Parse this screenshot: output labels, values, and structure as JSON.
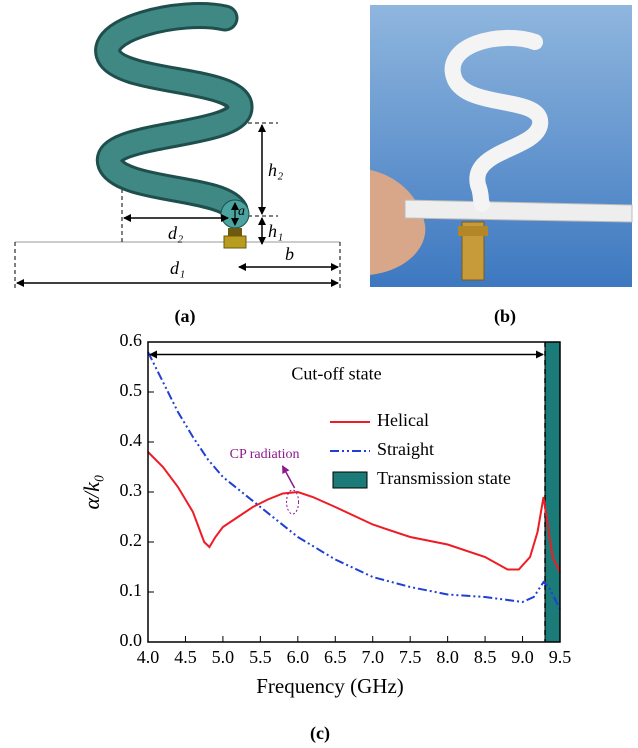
{
  "panels": [
    {
      "label": "(a)",
      "dimensions": [
        "h₂",
        "h₁",
        "a",
        "d₂",
        "d₁",
        "b"
      ]
    },
    {
      "label": "(b)"
    }
  ],
  "chart_data": {
    "type": "line",
    "panel_label": "(c)",
    "xlabel": "Frequency (GHz)",
    "ylabel": "α/k₀",
    "xlim": [
      4,
      9.5
    ],
    "xticks": [
      {
        "value": 4,
        "label": "4.0"
      },
      4.5,
      {
        "value": 5,
        "label": "5.0"
      },
      5.5,
      {
        "value": 6,
        "label": "6.0"
      },
      6.5,
      {
        "value": 7,
        "label": "7.0"
      },
      7.5,
      {
        "value": 8,
        "label": "8.0"
      },
      8.5,
      {
        "value": 9,
        "label": "9.0"
      },
      9.5
    ],
    "ylim": [
      0,
      0.6
    ],
    "yticks": [
      {
        "value": 0,
        "label": "0.0"
      },
      0.1,
      0.2,
      0.3,
      0.4,
      0.5,
      0.6
    ],
    "grid": false,
    "legend": "upper right",
    "annotations": [
      {
        "text": "Cut-off state",
        "x": [
          4,
          9.3
        ],
        "y": 0.575
      },
      {
        "text": "CP radiation",
        "x": 5.93,
        "y": 0.28,
        "color": "#8b1a8b"
      }
    ],
    "regions": [
      {
        "name": "Transmission state",
        "color": "#1b7b78",
        "range": [
          9.3,
          9.5
        ]
      }
    ],
    "series": [
      {
        "name": "Helical",
        "color": "#ee1c24",
        "linestyle": "solid",
        "x": [
          4.0,
          4.2,
          4.4,
          4.6,
          4.75,
          4.82,
          4.9,
          5.0,
          5.2,
          5.4,
          5.6,
          5.8,
          6.0,
          6.2,
          6.5,
          7.0,
          7.5,
          8.0,
          8.5,
          8.8,
          8.95,
          9.1,
          9.2,
          9.28,
          9.32,
          9.4,
          9.5
        ],
        "values": [
          0.38,
          0.35,
          0.31,
          0.26,
          0.2,
          0.19,
          0.21,
          0.23,
          0.25,
          0.27,
          0.285,
          0.297,
          0.3,
          0.29,
          0.27,
          0.235,
          0.21,
          0.195,
          0.17,
          0.145,
          0.145,
          0.17,
          0.22,
          0.29,
          0.25,
          0.17,
          0.14
        ]
      },
      {
        "name": "Straight",
        "color": "#1f3fd6",
        "linestyle": "dash-dot-dot",
        "x": [
          4.0,
          4.2,
          4.4,
          4.6,
          4.8,
          5.0,
          5.5,
          6.0,
          6.5,
          7.0,
          7.5,
          8.0,
          8.5,
          9.0,
          9.15,
          9.28,
          9.35,
          9.42,
          9.5
        ],
        "values": [
          0.58,
          0.52,
          0.46,
          0.41,
          0.365,
          0.33,
          0.27,
          0.21,
          0.165,
          0.13,
          0.11,
          0.095,
          0.09,
          0.08,
          0.09,
          0.12,
          0.11,
          0.09,
          0.065
        ]
      }
    ]
  }
}
